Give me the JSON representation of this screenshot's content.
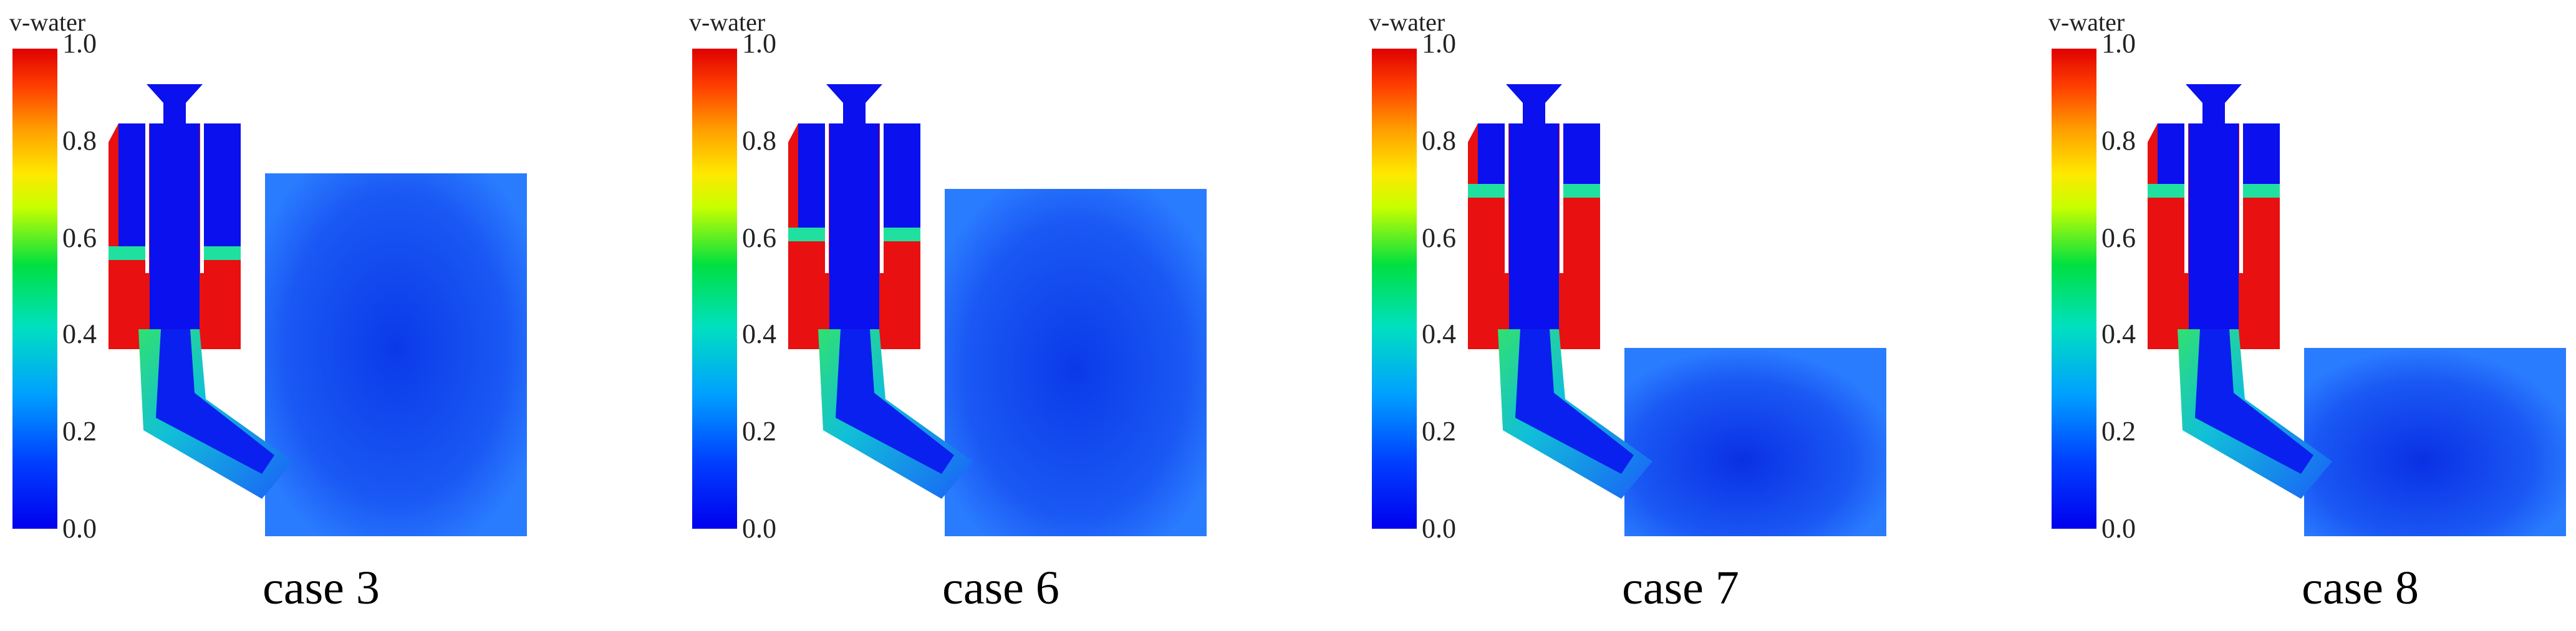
{
  "colorbar": {
    "title": "v-water",
    "ticks": [
      "1.0",
      "0.8",
      "0.6",
      "0.4",
      "0.2",
      "0.0"
    ],
    "range": [
      0.0,
      1.0
    ]
  },
  "panels": [
    {
      "label": "case 3",
      "tank_level": "high"
    },
    {
      "label": "case 6",
      "tank_level": "high"
    },
    {
      "label": "case 7",
      "tank_level": "low"
    },
    {
      "label": "case 8",
      "tank_level": "low"
    }
  ],
  "colors": {
    "water": "#e81010",
    "air": "#0a10ee",
    "tank": "#1a4cf0"
  }
}
